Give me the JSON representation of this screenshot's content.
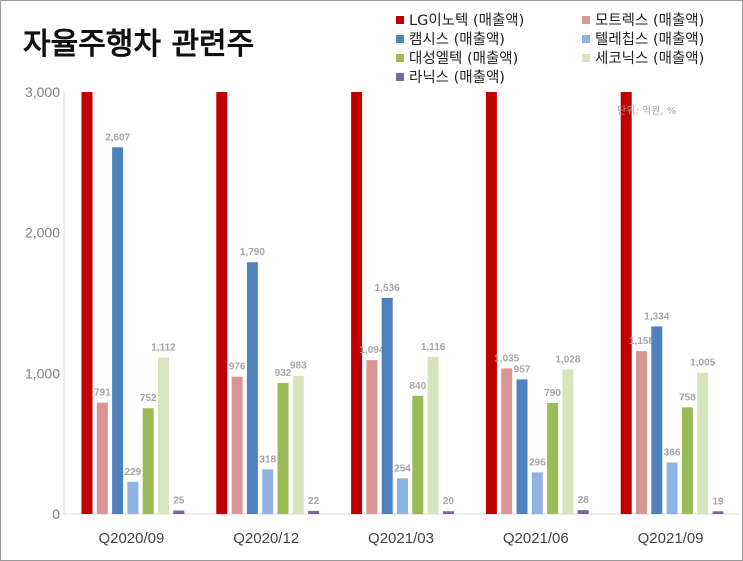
{
  "chart_data": {
    "type": "bar",
    "title": "자율주행차 관련주",
    "unit_note": "단위: 억원, %",
    "categories": [
      "Q2020/09",
      "Q2020/12",
      "Q2021/03",
      "Q2021/06",
      "Q2021/09"
    ],
    "ylim": [
      0,
      3000
    ],
    "yticks": [
      0,
      1000,
      2000,
      3000
    ],
    "ytick_labels": [
      "0",
      "1,000",
      "2,000",
      "3,000"
    ],
    "grid": false,
    "legend_position": "top-right",
    "series": [
      {
        "name": "LG이노텍 (매출액)",
        "color": "#c00000",
        "values": [
          3000,
          3000,
          3000,
          3000,
          3000
        ],
        "labels": [
          "",
          "",
          "",
          "",
          ""
        ]
      },
      {
        "name": "모트렉스 (매출액)",
        "color": "#da9694",
        "values": [
          791,
          976,
          1094,
          1035,
          1158
        ],
        "labels": [
          "791",
          "976",
          "1,094",
          "1,035",
          "1,158"
        ]
      },
      {
        "name": "캠시스 (매출액)",
        "color": "#4f81bd",
        "values": [
          2607,
          1790,
          1536,
          957,
          1334
        ],
        "labels": [
          "2,607",
          "1,790",
          "1,536",
          "957",
          "1,334"
        ]
      },
      {
        "name": "텔레칩스 (매출액)",
        "color": "#8db4e2",
        "values": [
          229,
          318,
          254,
          296,
          366
        ],
        "labels": [
          "229",
          "318",
          "254",
          "296",
          "366"
        ]
      },
      {
        "name": "대성엘텍 (매출액)",
        "color": "#9bbb59",
        "values": [
          752,
          932,
          840,
          790,
          758
        ],
        "labels": [
          "752",
          "932",
          "840",
          "790",
          "758"
        ]
      },
      {
        "name": "세코닉스 (매출액)",
        "color": "#d8e4bc",
        "values": [
          1112,
          983,
          1116,
          1028,
          1005
        ],
        "labels": [
          "1,112",
          "983",
          "1,116",
          "1,028",
          "1,005"
        ]
      },
      {
        "name": "라닉스 (매출액)",
        "color": "#8064a2",
        "values": [
          25,
          22,
          20,
          28,
          19
        ],
        "labels": [
          "25",
          "22",
          "20",
          "28",
          "19"
        ]
      }
    ]
  }
}
